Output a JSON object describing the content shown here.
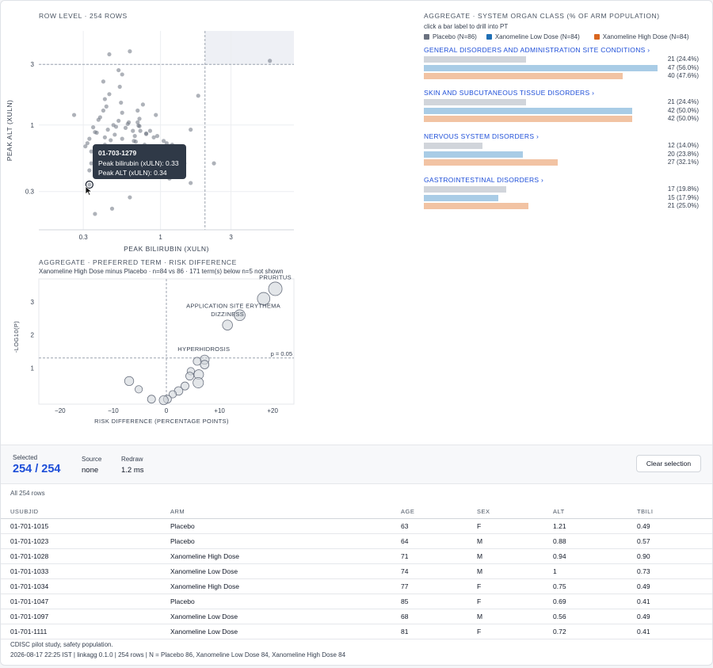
{
  "scatter": {
    "section_label": "ROW LEVEL · 254 ROWS",
    "xlabel": "PEAK BILIRUBIN (XULN)",
    "ylabel": "PEAK ALT (XULN)",
    "x_ticks": [
      "0.3",
      "1",
      "3"
    ],
    "y_ticks": [
      "3",
      "1",
      "0.3"
    ],
    "tooltip": {
      "id": "01-703-1279",
      "line1": "Peak bilirubin (xULN): 0.33",
      "line2": "Peak ALT (xULN): 0.34"
    }
  },
  "volcano": {
    "section_label": "AGGREGATE · PREFERRED TERM · RISK DIFFERENCE",
    "subtitle": "Xanomeline High Dose minus Placebo · n=84 vs 86 · 171 term(s) below n=5 not shown",
    "xlabel": "RISK DIFFERENCE (PERCENTAGE POINTS)",
    "ylabel": "-LOG10(P)",
    "threshold_label": "p = 0.05",
    "x_ticks": [
      "−20",
      "−10",
      "0",
      "+10",
      "+20"
    ],
    "y_ticks": [
      "3",
      "2",
      "1"
    ],
    "point_labels": [
      "PRURITUS",
      "APPLICATION SITE ERYTHEMA",
      "DIZZINESS",
      "HYPERHIDROSIS"
    ]
  },
  "soc": {
    "section_label": "AGGREGATE · SYSTEM ORGAN CLASS (% OF ARM POPULATION)",
    "hint": "click a bar label to drill into PT",
    "legend": [
      {
        "label": "Placebo (N=86)",
        "color": "#6b7280"
      },
      {
        "label": "Xanomeline Low Dose (N=84)",
        "color": "#1f6fb5"
      },
      {
        "label": "Xanomeline High Dose (N=84)",
        "color": "#d9661f"
      }
    ],
    "groups": [
      {
        "title": "GENERAL DISORDERS AND ADMINISTRATION SITE CONDITIONS ›",
        "bars": [
          {
            "label": "21 (24.4%)"
          },
          {
            "label": "47 (56.0%)"
          },
          {
            "label": "40 (47.6%)"
          }
        ]
      },
      {
        "title": "SKIN AND SUBCUTANEOUS TISSUE DISORDERS ›",
        "bars": [
          {
            "label": "21 (24.4%)"
          },
          {
            "label": "42 (50.0%)"
          },
          {
            "label": "42 (50.0%)"
          }
        ]
      },
      {
        "title": "NERVOUS SYSTEM DISORDERS ›",
        "bars": [
          {
            "label": "12 (14.0%)"
          },
          {
            "label": "20 (23.8%)"
          },
          {
            "label": "27 (32.1%)"
          }
        ]
      },
      {
        "title": "GASTROINTESTINAL DISORDERS ›",
        "bars": [
          {
            "label": "17 (19.8%)"
          },
          {
            "label": "15 (17.9%)"
          },
          {
            "label": "21 (25.0%)"
          }
        ]
      }
    ]
  },
  "status": {
    "selected_label": "Selected",
    "selected_value": "254 / 254",
    "source_label": "Source",
    "source_value": "none",
    "redraw_label": "Redraw",
    "redraw_value": "1.2 ms",
    "clear_button": "Clear selection"
  },
  "table": {
    "caption": "All 254 rows",
    "columns": [
      "USUBJID",
      "ARM",
      "AGE",
      "SEX",
      "ALT",
      "TBILI"
    ],
    "rows": [
      [
        "01-701-1015",
        "Placebo",
        "63",
        "F",
        "1.21",
        "0.49"
      ],
      [
        "01-701-1023",
        "Placebo",
        "64",
        "M",
        "0.88",
        "0.57"
      ],
      [
        "01-701-1028",
        "Xanomeline High Dose",
        "71",
        "M",
        "0.94",
        "0.90"
      ],
      [
        "01-701-1033",
        "Xanomeline Low Dose",
        "74",
        "M",
        "1",
        "0.73"
      ],
      [
        "01-701-1034",
        "Xanomeline High Dose",
        "77",
        "F",
        "0.75",
        "0.49"
      ],
      [
        "01-701-1047",
        "Placebo",
        "85",
        "F",
        "0.69",
        "0.41"
      ],
      [
        "01-701-1097",
        "Xanomeline Low Dose",
        "68",
        "M",
        "0.56",
        "0.49"
      ],
      [
        "01-701-1111",
        "Xanomeline Low Dose",
        "81",
        "F",
        "0.72",
        "0.41"
      ]
    ]
  },
  "footer": {
    "line1": "CDISC pilot study, safety population.",
    "line2": "2026-08-17 22:25 IST | linkagg 0.1.0 | 254 rows | N = Placebo 86, Xanomeline Low Dose 84, Xanomeline High Dose 84"
  },
  "chart_data": [
    {
      "type": "scatter",
      "xlabel": "PEAK BILIRUBIN (XULN)",
      "ylabel": "PEAK ALT (XULN)",
      "x_scale": "log",
      "y_scale": "log",
      "xlim": [
        0.15,
        8
      ],
      "ylim": [
        0.15,
        5.5
      ],
      "reference_lines": {
        "x": 2,
        "y": 3
      },
      "x": [
        0.33,
        0.45,
        0.62,
        0.26,
        0.52,
        0.55,
        0.41,
        0.38,
        0.7,
        0.48,
        0.58,
        0.65,
        0.8,
        0.9,
        1.05,
        1.2,
        1.4,
        0.36,
        0.44,
        0.5,
        0.6,
        0.72,
        0.85,
        0.95,
        1.1,
        0.42,
        0.55,
        0.68,
        0.78,
        0.31,
        0.34,
        0.47,
        0.57,
        0.75,
        1.0,
        1.3,
        0.4,
        0.52,
        0.63,
        0.88,
        0.33,
        0.45,
        0.6,
        0.82,
        1.15,
        0.37,
        0.5,
        0.66,
        0.98,
        1.25,
        1.6,
        0.43,
        0.54,
        0.7,
        0.93,
        0.32,
        0.46,
        0.58,
        0.74,
        1.05,
        1.45,
        0.39,
        0.61,
        0.8,
        0.35,
        0.49,
        0.67,
        0.9,
        0.42,
        0.55,
        0.72,
        0.38,
        0.51,
        0.64,
        0.41,
        0.53,
        0.76,
        0.62,
        0.47,
        0.36,
        1.8,
        2.3,
        1.6,
        0.45,
        0.73,
        5.5,
        0.33,
        0.42,
        0.56,
        0.69,
        0.87,
        1.12,
        0.39,
        0.48,
        0.59,
        0.77,
        0.34,
        0.44,
        0.53,
        0.66,
        0.83,
        1.35,
        0.37,
        0.52,
        0.71
      ],
      "y": [
        0.34,
        3.6,
        3.8,
        1.2,
        2.7,
        2.5,
        1.3,
        1.1,
        1.05,
        1.0,
        0.95,
        0.9,
        0.85,
        0.8,
        0.75,
        0.7,
        0.65,
        0.88,
        0.92,
        0.97,
        1.02,
        0.98,
        0.9,
        0.82,
        0.72,
        0.8,
        0.78,
        0.74,
        0.7,
        0.68,
        0.62,
        0.6,
        0.58,
        0.56,
        0.6,
        0.55,
        0.5,
        0.48,
        0.45,
        0.5,
        0.44,
        0.42,
        0.4,
        0.4,
        0.38,
        0.6,
        0.52,
        0.47,
        0.45,
        0.42,
        0.35,
        1.4,
        1.5,
        1.3,
        1.2,
        0.72,
        0.76,
        0.64,
        0.62,
        0.58,
        0.5,
        1.15,
        1.05,
        0.86,
        0.96,
        0.84,
        0.82,
        0.68,
        1.6,
        1.25,
        1.12,
        0.54,
        0.66,
        0.57,
        2.2,
        2.0,
        1.45,
        0.27,
        0.22,
        0.2,
        1.7,
        0.5,
        0.92,
        1.75,
        0.9,
        3.2,
        0.78,
        0.7,
        0.66,
        0.61,
        0.55,
        0.52,
        0.46,
        0.43,
        0.41,
        0.39,
        0.5,
        0.53,
        0.63,
        0.75,
        0.67,
        0.48,
        0.87,
        1.08,
        0.99
      ]
    },
    {
      "type": "scatter",
      "xlabel": "RISK DIFFERENCE (PERCENTAGE POINTS)",
      "ylabel": "-LOG10(P)",
      "xlim": [
        -24,
        24
      ],
      "ylim": [
        -0.1,
        3.7
      ],
      "reference_lines": {
        "x": 0,
        "y": 1.3
      },
      "points": [
        {
          "label": "PRURITUS",
          "x": 20.5,
          "y": 3.4,
          "n": 40
        },
        {
          "label": "",
          "x": 18.3,
          "y": 3.1,
          "n": 34
        },
        {
          "label": "APPLICATION SITE ERYTHEMA",
          "x": 13.8,
          "y": 2.6,
          "n": 26
        },
        {
          "label": "DIZZINESS",
          "x": 11.5,
          "y": 2.3,
          "n": 22
        },
        {
          "label": "HYPERHIDROSIS",
          "x": 7.2,
          "y": 1.25,
          "n": 18
        },
        {
          "label": "",
          "x": 7.2,
          "y": 1.1,
          "n": 16
        },
        {
          "label": "",
          "x": 5.8,
          "y": 1.2,
          "n": 14
        },
        {
          "label": "",
          "x": 4.6,
          "y": 0.9,
          "n": 12
        },
        {
          "label": "",
          "x": 4.4,
          "y": 0.75,
          "n": 14
        },
        {
          "label": "",
          "x": 6.1,
          "y": 0.8,
          "n": 20
        },
        {
          "label": "",
          "x": 6.0,
          "y": 0.55,
          "n": 24
        },
        {
          "label": "",
          "x": 3.5,
          "y": 0.45,
          "n": 14
        },
        {
          "label": "",
          "x": 2.3,
          "y": 0.3,
          "n": 16
        },
        {
          "label": "",
          "x": 1.2,
          "y": 0.2,
          "n": 12
        },
        {
          "label": "",
          "x": 0.2,
          "y": 0.05,
          "n": 14
        },
        {
          "label": "",
          "x": -0.5,
          "y": 0.02,
          "n": 18
        },
        {
          "label": "",
          "x": -2.8,
          "y": 0.05,
          "n": 14
        },
        {
          "label": "",
          "x": -5.2,
          "y": 0.35,
          "n": 12
        },
        {
          "label": "",
          "x": -7.0,
          "y": 0.6,
          "n": 18
        }
      ]
    },
    {
      "type": "bar",
      "orientation": "horizontal",
      "unit": "% of arm population",
      "categories": [
        "GENERAL DISORDERS AND ADMINISTRATION SITE CONDITIONS",
        "SKIN AND SUBCUTANEOUS TISSUE DISORDERS",
        "NERVOUS SYSTEM DISORDERS",
        "GASTROINTESTINAL DISORDERS"
      ],
      "series": [
        {
          "name": "Placebo (N=86)",
          "values": [
            24.4,
            24.4,
            14.0,
            19.8
          ],
          "counts": [
            21,
            21,
            12,
            17
          ]
        },
        {
          "name": "Xanomeline Low Dose (N=84)",
          "values": [
            56.0,
            50.0,
            23.8,
            17.9
          ],
          "counts": [
            47,
            42,
            20,
            15
          ]
        },
        {
          "name": "Xanomeline High Dose (N=84)",
          "values": [
            47.6,
            50.0,
            32.1,
            25.0
          ],
          "counts": [
            40,
            42,
            27,
            21
          ]
        }
      ],
      "xlim": [
        0,
        56
      ]
    }
  ]
}
